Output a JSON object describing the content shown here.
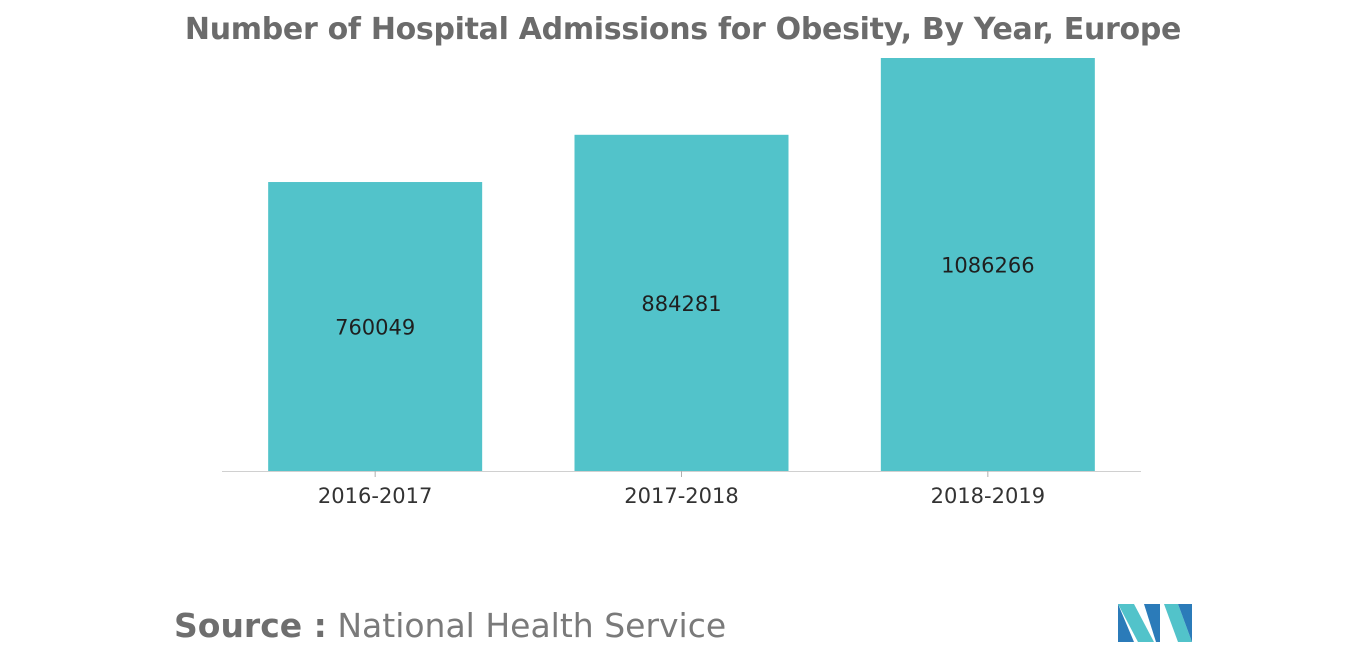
{
  "chart_data": {
    "type": "bar",
    "title": "Number of Hospital Admissions for Obesity, By Year, Europe",
    "categories": [
      "2016-2017",
      "2017-2018",
      "2018-2019"
    ],
    "values": [
      760049,
      884281,
      1086266
    ],
    "value_labels": [
      "760049",
      "884281",
      "1086266"
    ],
    "xlabel": "",
    "ylabel": "",
    "ylim": [
      0,
      1086266
    ],
    "grid": false,
    "legend": "none",
    "bar_color": "#52c3ca"
  },
  "source": {
    "label": "Source :",
    "text": "National Health Service"
  },
  "logo": {
    "icon": "mordor-logo-icon",
    "colors": [
      "#2b7bb9",
      "#52c3ca"
    ]
  }
}
